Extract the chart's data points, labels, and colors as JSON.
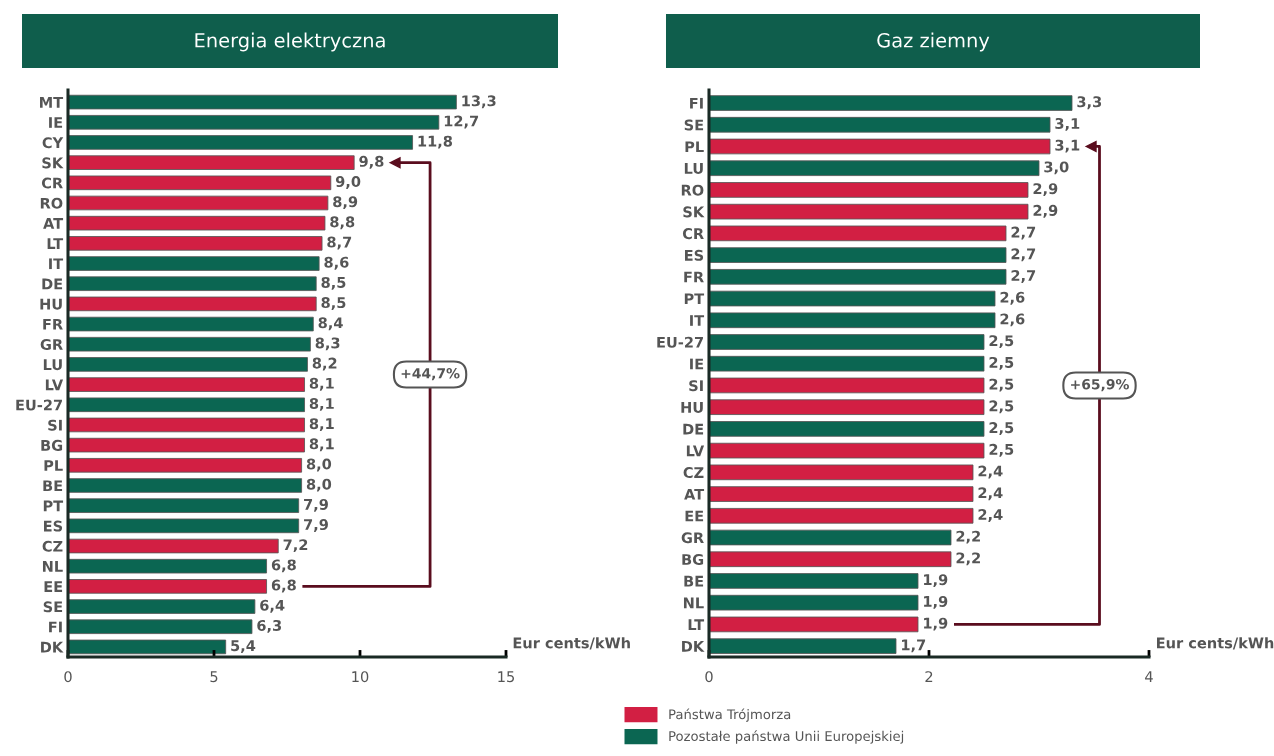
{
  "chart_data": [
    {
      "type": "bar",
      "orientation": "horizontal",
      "title": "Energia elektryczna",
      "xlabel": "Eur cents/kWh",
      "categories": [
        "MT",
        "IE",
        "CY",
        "SK",
        "CR",
        "RO",
        "AT",
        "LT",
        "IT",
        "DE",
        "HU",
        "FR",
        "GR",
        "LU",
        "LV",
        "EU-27",
        "SI",
        "BG",
        "PL",
        "BE",
        "PT",
        "ES",
        "CZ",
        "NL",
        "EE",
        "SE",
        "FI",
        "DK"
      ],
      "series": [
        {
          "name": "Państwa Trójmorza",
          "color": "#d21f43",
          "values": [
            null,
            null,
            null,
            9.8,
            9.0,
            8.9,
            8.8,
            8.7,
            null,
            null,
            8.5,
            null,
            null,
            null,
            8.1,
            null,
            8.1,
            8.1,
            8.0,
            null,
            null,
            null,
            7.2,
            null,
            6.8,
            null,
            null,
            null
          ],
          "value_labels": [
            null,
            null,
            null,
            "9,8",
            "9,0",
            "8,9",
            "8,8",
            "8,7",
            null,
            null,
            "8,5",
            null,
            null,
            null,
            "8,1",
            null,
            "8,1",
            "8,1",
            "8,0",
            null,
            null,
            null,
            "7,2",
            null,
            "6,8",
            null,
            null,
            null
          ]
        },
        {
          "name": "Pozostałe państwa Unii Europejskiej",
          "color": "#0b6652",
          "values": [
            13.3,
            12.7,
            11.8,
            null,
            null,
            null,
            null,
            null,
            8.6,
            8.5,
            null,
            8.4,
            8.3,
            8.2,
            null,
            8.1,
            null,
            null,
            null,
            8.0,
            7.9,
            7.9,
            null,
            6.8,
            null,
            6.4,
            6.3,
            5.4
          ],
          "value_labels": [
            "13,3",
            "12,7",
            "11,8",
            null,
            null,
            null,
            null,
            null,
            "8,6",
            "8,5",
            null,
            "8,4",
            "8,3",
            "8,2",
            null,
            "8,1",
            null,
            null,
            null,
            "8,0",
            "7,9",
            "7,9",
            null,
            "6,8",
            null,
            "6,4",
            "6,3",
            "5,4"
          ]
        }
      ],
      "xlim": [
        0,
        15
      ],
      "xticks": [
        0,
        5,
        10,
        15
      ],
      "grid": false,
      "legend": "bottom",
      "annotations": [
        "+44,7%"
      ]
    },
    {
      "type": "bar",
      "orientation": "horizontal",
      "title": "Gaz ziemny",
      "xlabel": "Eur cents/kWh",
      "categories": [
        "FI",
        "SE",
        "PL",
        "LU",
        "RO",
        "SK",
        "CR",
        "ES",
        "FR",
        "PT",
        "IT",
        "EU-27",
        "IE",
        "SI",
        "HU",
        "DE",
        "LV",
        "CZ",
        "AT",
        "EE",
        "GR",
        "BG",
        "BE",
        "NL",
        "LT",
        "DK"
      ],
      "series": [
        {
          "color": "#d21f43",
          "values": [
            null,
            null,
            3.1,
            null,
            2.9,
            2.9,
            2.7,
            null,
            null,
            null,
            null,
            null,
            null,
            2.5,
            2.5,
            null,
            2.5,
            2.4,
            2.4,
            2.4,
            null,
            2.2,
            null,
            null,
            1.9,
            null
          ],
          "value_labels": [
            null,
            null,
            "3,1",
            null,
            "2,9",
            "2,9",
            "2,7",
            null,
            null,
            null,
            null,
            null,
            null,
            "2,5",
            "2,5",
            null,
            "2,5",
            "2,4",
            "2,4",
            "2,4",
            null,
            "2,2",
            null,
            null,
            "1,9",
            null
          ]
        },
        {
          "color": "#0b6652",
          "values": [
            3.3,
            3.1,
            null,
            3.0,
            null,
            null,
            null,
            2.7,
            2.7,
            2.6,
            2.6,
            2.5,
            2.5,
            null,
            null,
            2.5,
            null,
            null,
            null,
            null,
            2.2,
            null,
            1.9,
            1.9,
            null,
            1.7
          ],
          "value_labels": [
            "3,3",
            "3,1",
            null,
            "3,0",
            null,
            null,
            null,
            "2,7",
            "2,7",
            "2,6",
            "2,6",
            "2,5",
            "2,5",
            null,
            null,
            "2,5",
            null,
            null,
            null,
            null,
            "2,2",
            null,
            "1,9",
            "1,9",
            null,
            "1,7"
          ]
        }
      ],
      "xlim": [
        0,
        4
      ],
      "xticks": [
        0,
        2,
        4
      ],
      "grid": false,
      "annotations": [
        "+65,9%"
      ]
    }
  ]
}
